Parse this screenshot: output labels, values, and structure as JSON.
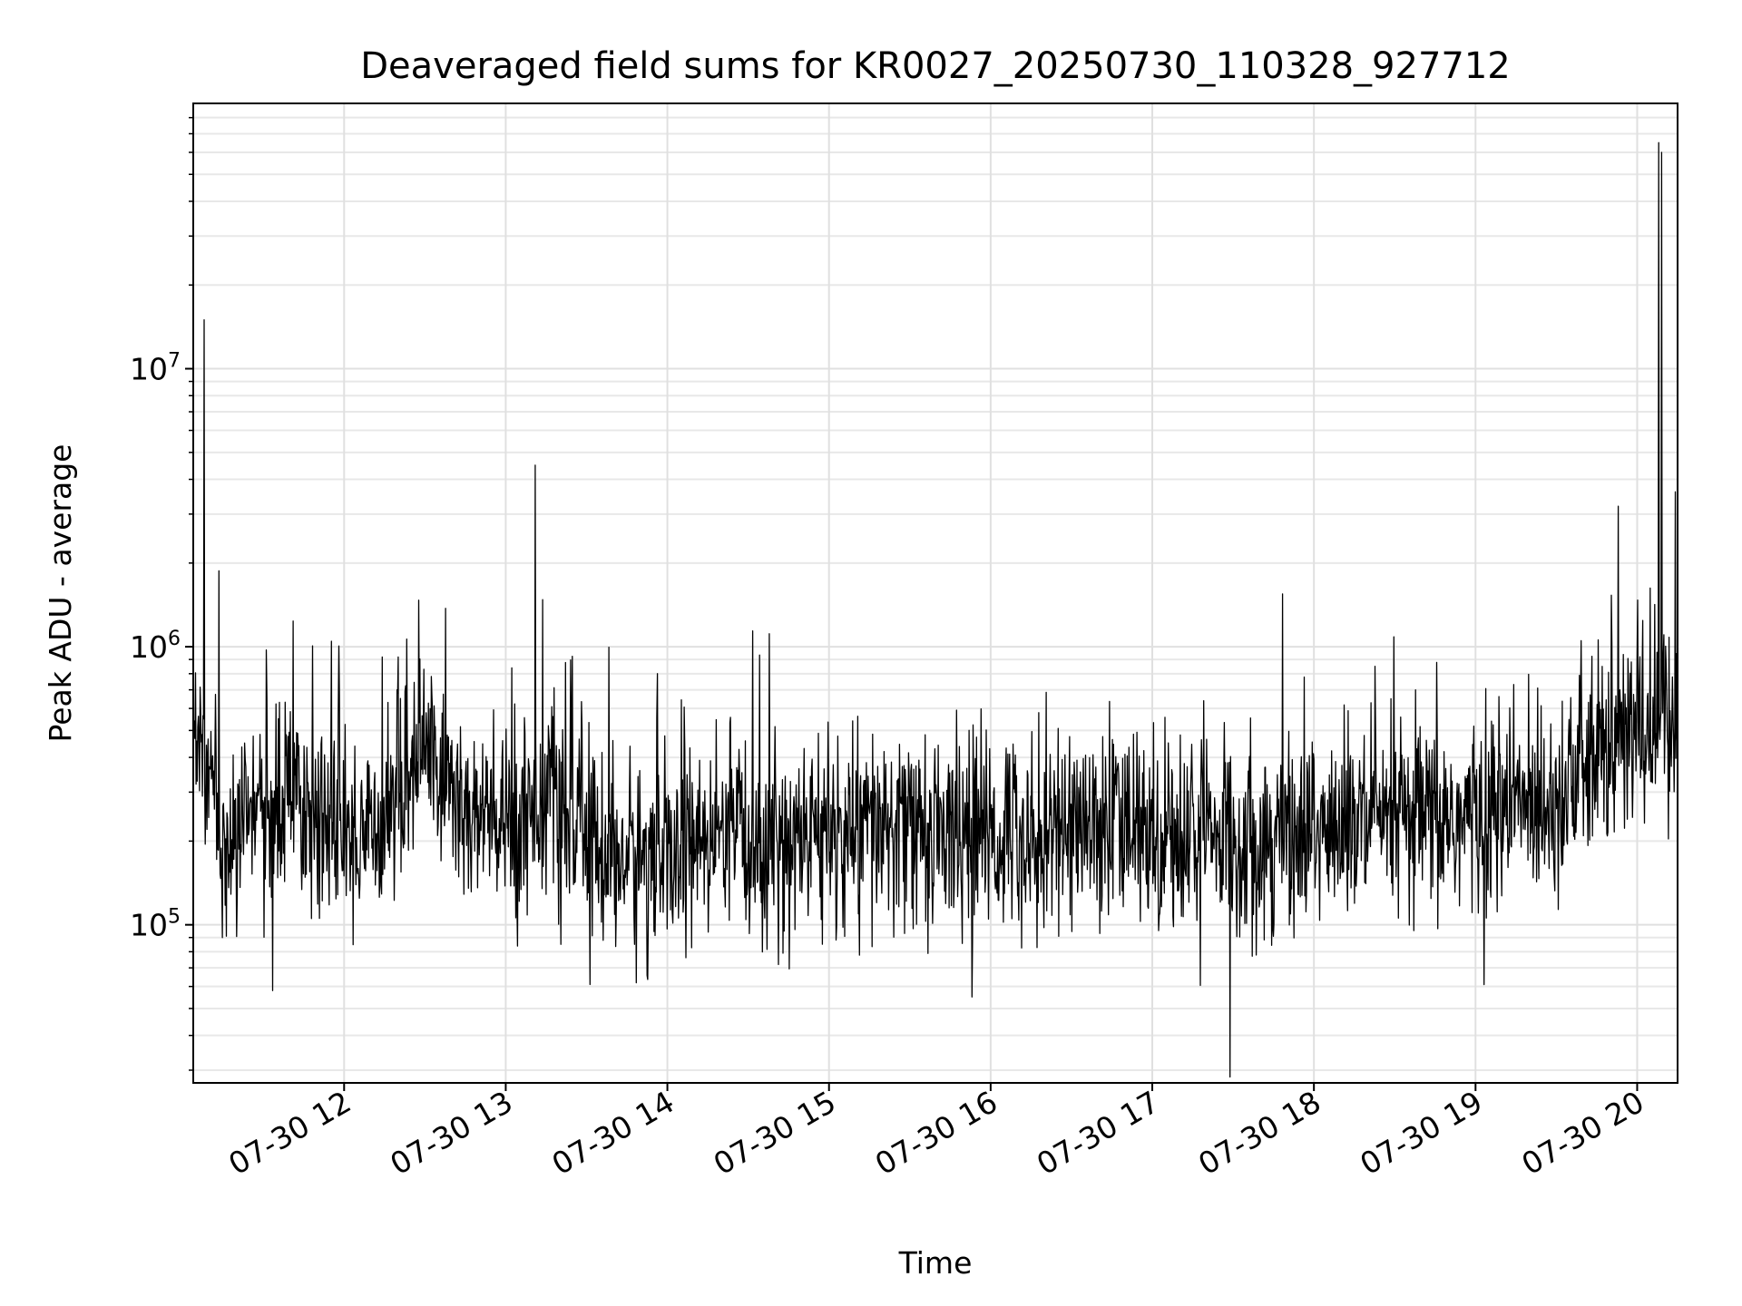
{
  "chart_data": {
    "type": "line",
    "title": "Deaveraged field sums for KR0027_20250730_110328_927712",
    "xlabel": "Time",
    "ylabel": "Peak ADU - average",
    "yscale": "log",
    "ylim": [
      27000,
      90000000
    ],
    "xlim": [
      "2025-07-30 11:04",
      "2025-07-30 20:15"
    ],
    "grid": true,
    "x_ticks": [
      {
        "value": "2025-07-30 12:00",
        "label": "07-30 12"
      },
      {
        "value": "2025-07-30 13:00",
        "label": "07-30 13"
      },
      {
        "value": "2025-07-30 14:00",
        "label": "07-30 14"
      },
      {
        "value": "2025-07-30 15:00",
        "label": "07-30 15"
      },
      {
        "value": "2025-07-30 16:00",
        "label": "07-30 16"
      },
      {
        "value": "2025-07-30 17:00",
        "label": "07-30 17"
      },
      {
        "value": "2025-07-30 18:00",
        "label": "07-30 18"
      },
      {
        "value": "2025-07-30 19:00",
        "label": "07-30 19"
      },
      {
        "value": "2025-07-30 20:00",
        "label": "07-30 20"
      }
    ],
    "y_ticks": [
      {
        "value": 100000,
        "base": "10",
        "exp": "5"
      },
      {
        "value": 1000000,
        "base": "10",
        "exp": "6"
      },
      {
        "value": 10000000,
        "base": "10",
        "exp": "7"
      }
    ],
    "series": [
      {
        "color": "#000000",
        "points": [
          {
            "x": "2025-07-30 11:04",
            "y": 600000
          },
          {
            "x": "2025-07-30 11:08",
            "y": 15000000
          },
          {
            "x": "2025-07-30 11:15",
            "y": 200000
          },
          {
            "x": "2025-07-30 11:30",
            "y": 250000
          },
          {
            "x": "2025-07-30 11:45",
            "y": 280000
          },
          {
            "x": "2025-07-30 12:00",
            "y": 200000
          },
          {
            "x": "2025-07-30 12:15",
            "y": 250000
          },
          {
            "x": "2025-07-30 12:30",
            "y": 450000
          },
          {
            "x": "2025-07-30 12:45",
            "y": 250000
          },
          {
            "x": "2025-07-30 13:00",
            "y": 220000
          },
          {
            "x": "2025-07-30 13:11",
            "y": 4500000
          },
          {
            "x": "2025-07-30 13:15",
            "y": 300000
          },
          {
            "x": "2025-07-30 13:30",
            "y": 200000
          },
          {
            "x": "2025-07-30 13:45",
            "y": 170000
          },
          {
            "x": "2025-07-30 14:00",
            "y": 180000
          },
          {
            "x": "2025-07-30 14:30",
            "y": 200000
          },
          {
            "x": "2025-07-30 15:00",
            "y": 210000
          },
          {
            "x": "2025-07-30 15:30",
            "y": 220000
          },
          {
            "x": "2025-07-30 15:53",
            "y": 55000
          },
          {
            "x": "2025-07-30 16:00",
            "y": 210000
          },
          {
            "x": "2025-07-30 16:30",
            "y": 230000
          },
          {
            "x": "2025-07-30 17:00",
            "y": 220000
          },
          {
            "x": "2025-07-30 17:30",
            "y": 200000
          },
          {
            "x": "2025-07-30 18:00",
            "y": 220000
          },
          {
            "x": "2025-07-30 18:30",
            "y": 230000
          },
          {
            "x": "2025-07-30 19:00",
            "y": 240000
          },
          {
            "x": "2025-07-30 19:30",
            "y": 300000
          },
          {
            "x": "2025-07-30 19:53",
            "y": 3200000
          },
          {
            "x": "2025-07-30 20:00",
            "y": 500000
          },
          {
            "x": "2025-07-30 20:08",
            "y": 65000000
          },
          {
            "x": "2025-07-30 20:09",
            "y": 60000000
          },
          {
            "x": "2025-07-30 20:15",
            "y": 550000
          }
        ]
      }
    ]
  }
}
